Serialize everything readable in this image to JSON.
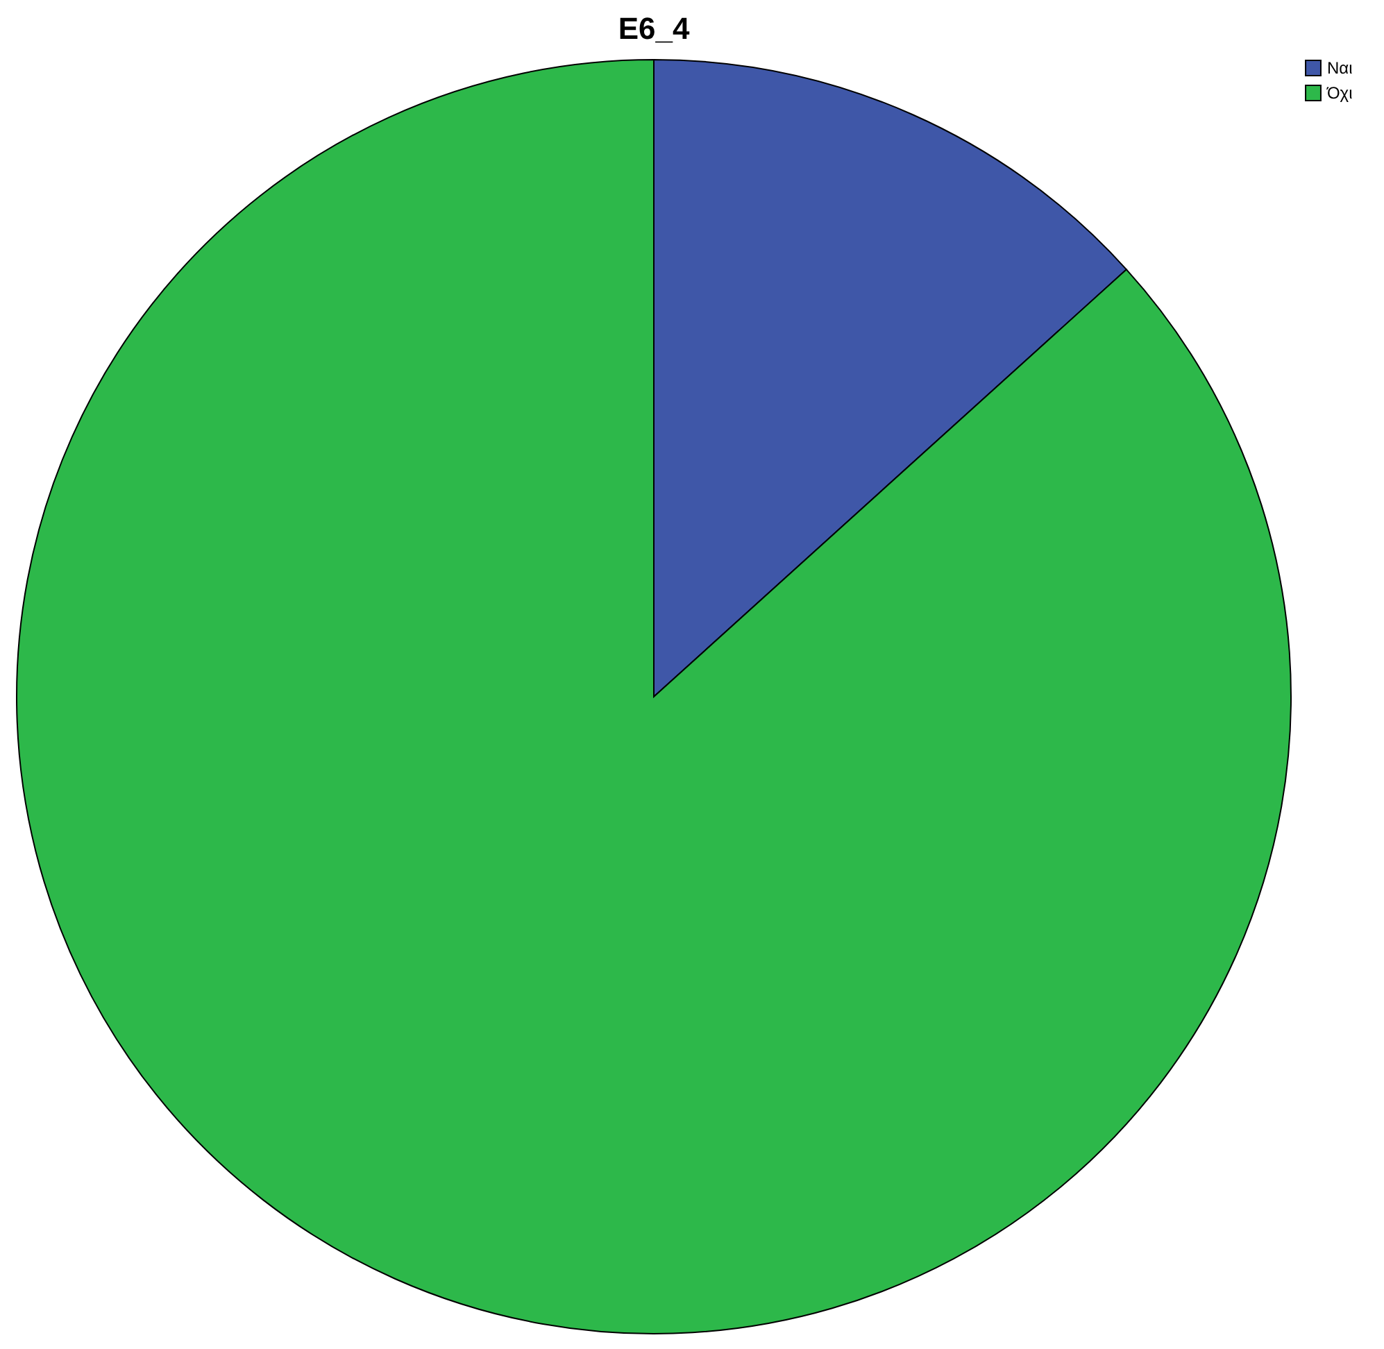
{
  "chart_data": {
    "type": "pie",
    "title": "E6_4",
    "categories": [
      "Ναι",
      "Όχι"
    ],
    "values": [
      13.3,
      86.7
    ],
    "colors": [
      "#3f57a8",
      "#2db84a"
    ],
    "legend": "top right"
  }
}
